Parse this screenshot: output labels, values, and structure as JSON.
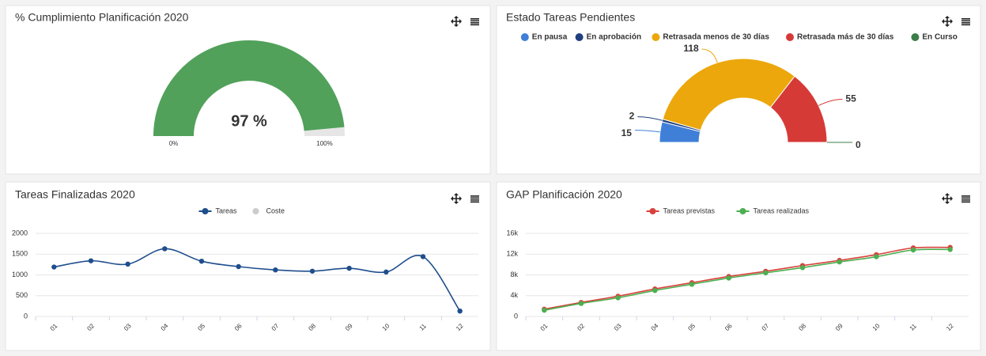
{
  "chart_data": [
    {
      "type": "gauge",
      "title": "% Cumplimiento Planificación 2020",
      "values": [
        97
      ],
      "value_labels": [
        "97 %"
      ],
      "color": "#51a15a",
      "ylim": [
        0,
        100
      ],
      "yticks": [
        {
          "value": 0,
          "label": "0%"
        },
        {
          "value": 100,
          "label": "100%"
        }
      ]
    },
    {
      "type": "pie",
      "title": "Estado Tareas Pendientes",
      "legend": "top",
      "series": [
        {
          "name": "En pausa",
          "color": "#3f7fd8",
          "values": [
            15
          ]
        },
        {
          "name": "En aprobación",
          "color": "#1f3f7f",
          "values": [
            2
          ]
        },
        {
          "name": "Retrasada menos de 30 días",
          "color": "#eba70b",
          "values": [
            118
          ]
        },
        {
          "name": "Retrasada más de 30 días",
          "color": "#d63a37",
          "values": [
            55
          ]
        },
        {
          "name": "En Curso",
          "color": "#3c7d4a",
          "values": [
            0
          ]
        }
      ]
    },
    {
      "type": "line",
      "title": "Tareas Finalizadas 2020",
      "legend": "top",
      "grid": true,
      "categories": [
        "01",
        "02",
        "03",
        "04",
        "05",
        "06",
        "07",
        "08",
        "09",
        "10",
        "11",
        "12"
      ],
      "ylim": [
        0,
        2000
      ],
      "yticks": [
        0,
        500,
        1000,
        1500,
        2000
      ],
      "series": [
        {
          "name": "Tareas",
          "color": "#1f4e8c",
          "values": [
            1190,
            1340,
            1260,
            1630,
            1330,
            1200,
            1120,
            1090,
            1160,
            1070,
            1440,
            130
          ]
        },
        {
          "name": "Coste",
          "color": "#cccccc",
          "values": [
            null,
            null,
            null,
            null,
            null,
            null,
            null,
            null,
            null,
            null,
            null,
            null
          ]
        }
      ]
    },
    {
      "type": "line",
      "title": "GAP Planificación 2020",
      "legend": "top",
      "grid": true,
      "categories": [
        "01",
        "02",
        "03",
        "04",
        "05",
        "06",
        "07",
        "08",
        "09",
        "10",
        "11",
        "12"
      ],
      "ylim": [
        0,
        16000
      ],
      "yticks": [
        0,
        {
          "value": 4000,
          "label": "4k"
        },
        {
          "value": 8000,
          "label": "8k"
        },
        {
          "value": 12000,
          "label": "12k"
        },
        {
          "value": 16000,
          "label": "16k"
        }
      ],
      "series": [
        {
          "name": "Tareas previstas",
          "color": "#d9413d",
          "values": [
            1400,
            2700,
            3900,
            5300,
            6500,
            7700,
            8700,
            9800,
            10800,
            11900,
            13200,
            13300
          ]
        },
        {
          "name": "Tareas realizadas",
          "color": "#4caf50",
          "values": [
            1200,
            2500,
            3600,
            5000,
            6200,
            7400,
            8400,
            9400,
            10500,
            11500,
            12800,
            12900
          ]
        }
      ]
    }
  ]
}
